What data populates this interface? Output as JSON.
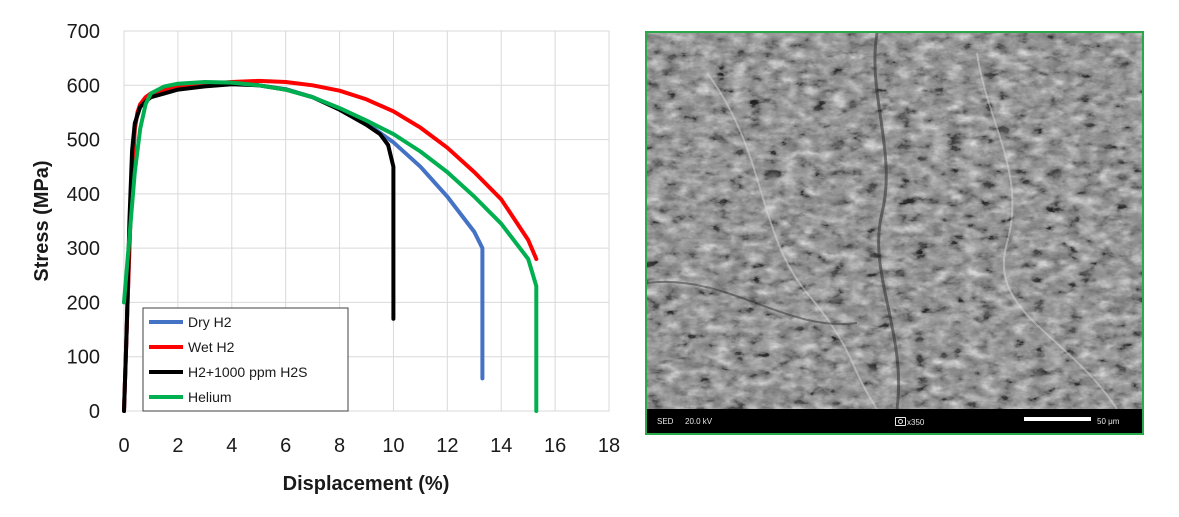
{
  "chart_data": {
    "type": "line",
    "title": "",
    "xlabel": "Displacement (%)",
    "ylabel": "Stress (MPa)",
    "xlim": [
      0,
      18
    ],
    "ylim": [
      0,
      700
    ],
    "xticks": [
      0,
      2,
      4,
      6,
      8,
      10,
      12,
      14,
      16,
      18
    ],
    "yticks": [
      0,
      100,
      200,
      300,
      400,
      500,
      600,
      700
    ],
    "grid": true,
    "legend_position": "bottom-left",
    "series": [
      {
        "name": "Dry H2",
        "color": "#4472c4",
        "x": [
          0,
          0.1,
          0.2,
          0.3,
          0.4,
          0.5,
          0.6,
          0.8,
          1.0,
          1.5,
          2.0,
          3.0,
          4.0,
          5.0,
          6.0,
          7.0,
          8.0,
          9.0,
          10.0,
          11.0,
          12.0,
          13.0,
          13.3,
          13.3
        ],
        "y": [
          0,
          150,
          300,
          430,
          520,
          550,
          565,
          575,
          580,
          590,
          595,
          600,
          603,
          600,
          593,
          578,
          557,
          530,
          495,
          450,
          395,
          330,
          300,
          60
        ]
      },
      {
        "name": "Wet H2",
        "color": "#ff0000",
        "x": [
          0,
          0.1,
          0.2,
          0.3,
          0.4,
          0.5,
          0.6,
          0.8,
          1.0,
          1.5,
          2.0,
          3.0,
          4.0,
          5.0,
          6.0,
          7.0,
          8.0,
          9.0,
          10.0,
          11.0,
          12.0,
          13.0,
          14.0,
          15.0,
          15.3
        ],
        "y": [
          0,
          150,
          300,
          430,
          520,
          550,
          565,
          578,
          585,
          592,
          598,
          603,
          606,
          608,
          606,
          600,
          590,
          574,
          552,
          522,
          485,
          440,
          390,
          315,
          280
        ]
      },
      {
        "name": "H2+1000 ppm H2S",
        "color": "#000000",
        "x": [
          0,
          0.1,
          0.2,
          0.3,
          0.4,
          0.5,
          0.6,
          0.8,
          1.0,
          1.5,
          2.0,
          3.0,
          4.0,
          5.0,
          6.0,
          7.0,
          8.0,
          9.0,
          9.5,
          9.8,
          10.0,
          10.0
        ],
        "y": [
          0,
          150,
          350,
          480,
          530,
          545,
          560,
          570,
          578,
          585,
          592,
          598,
          602,
          600,
          592,
          578,
          555,
          527,
          510,
          490,
          450,
          170
        ]
      },
      {
        "name": "Helium",
        "color": "#00b050",
        "x": [
          0,
          0.2,
          0.4,
          0.6,
          0.8,
          1.0,
          1.5,
          2.0,
          3.0,
          4.0,
          5.0,
          6.0,
          7.0,
          8.0,
          9.0,
          10.0,
          11.0,
          12.0,
          13.0,
          14.0,
          15.0,
          15.3,
          15.3
        ],
        "y": [
          200,
          320,
          440,
          520,
          565,
          585,
          598,
          603,
          606,
          605,
          600,
          592,
          578,
          558,
          535,
          510,
          478,
          440,
          395,
          345,
          280,
          230,
          0
        ]
      }
    ]
  },
  "sem_panel": {
    "detector": "SED",
    "voltage": "20.0 kV",
    "magnification": "x350",
    "scale_label": "50 μm",
    "border_color": "#2aa84a"
  }
}
